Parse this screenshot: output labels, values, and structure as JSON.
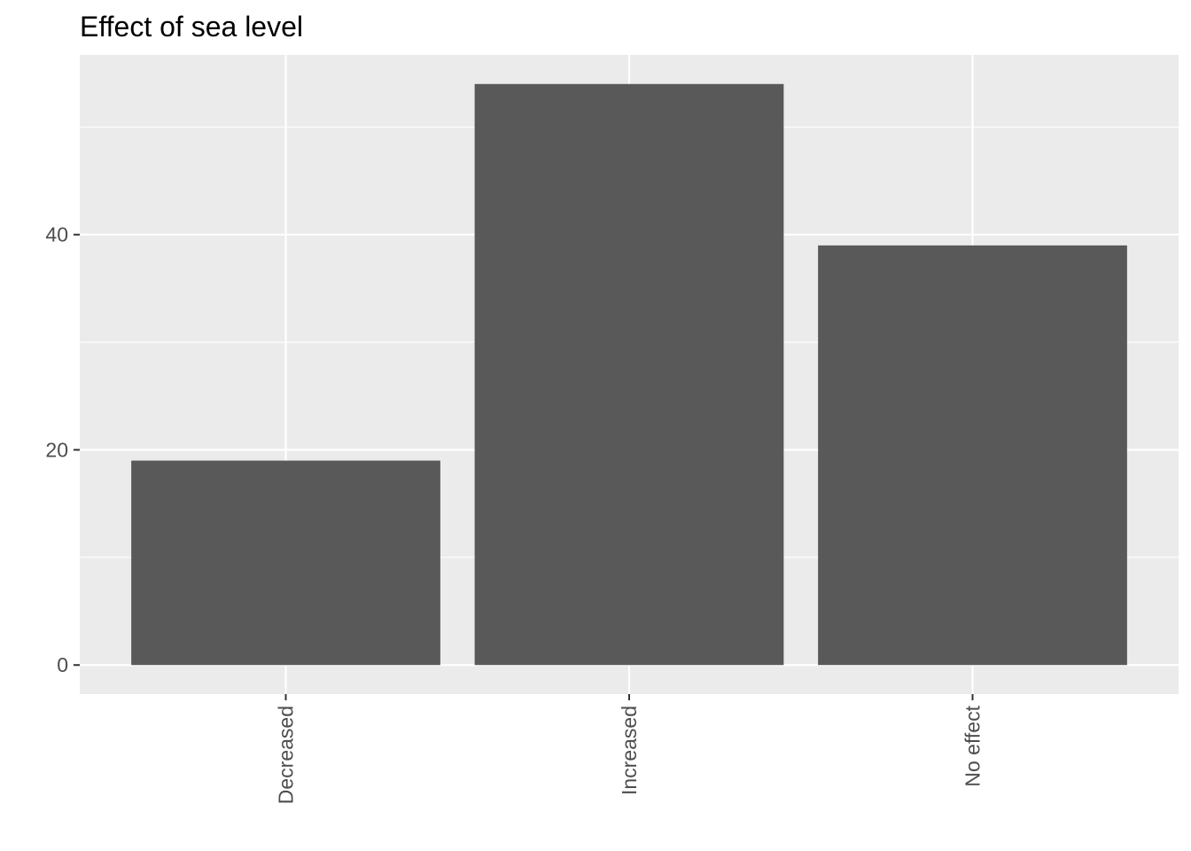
{
  "chart_data": {
    "type": "bar",
    "title": "Effect of sea level",
    "xlabel": "",
    "ylabel": "",
    "categories": [
      "Decreased",
      "Increased",
      "No effect"
    ],
    "values": [
      19,
      54,
      39
    ],
    "ylim": [
      -2.7,
      56.7
    ],
    "yticks": [
      0,
      20,
      40
    ],
    "grid": true,
    "colors": {
      "bar": "#595959",
      "panel_background": "#ebebeb",
      "grid_major": "#ffffff",
      "grid_minor": "#ffffff",
      "tick": "#333333"
    }
  }
}
